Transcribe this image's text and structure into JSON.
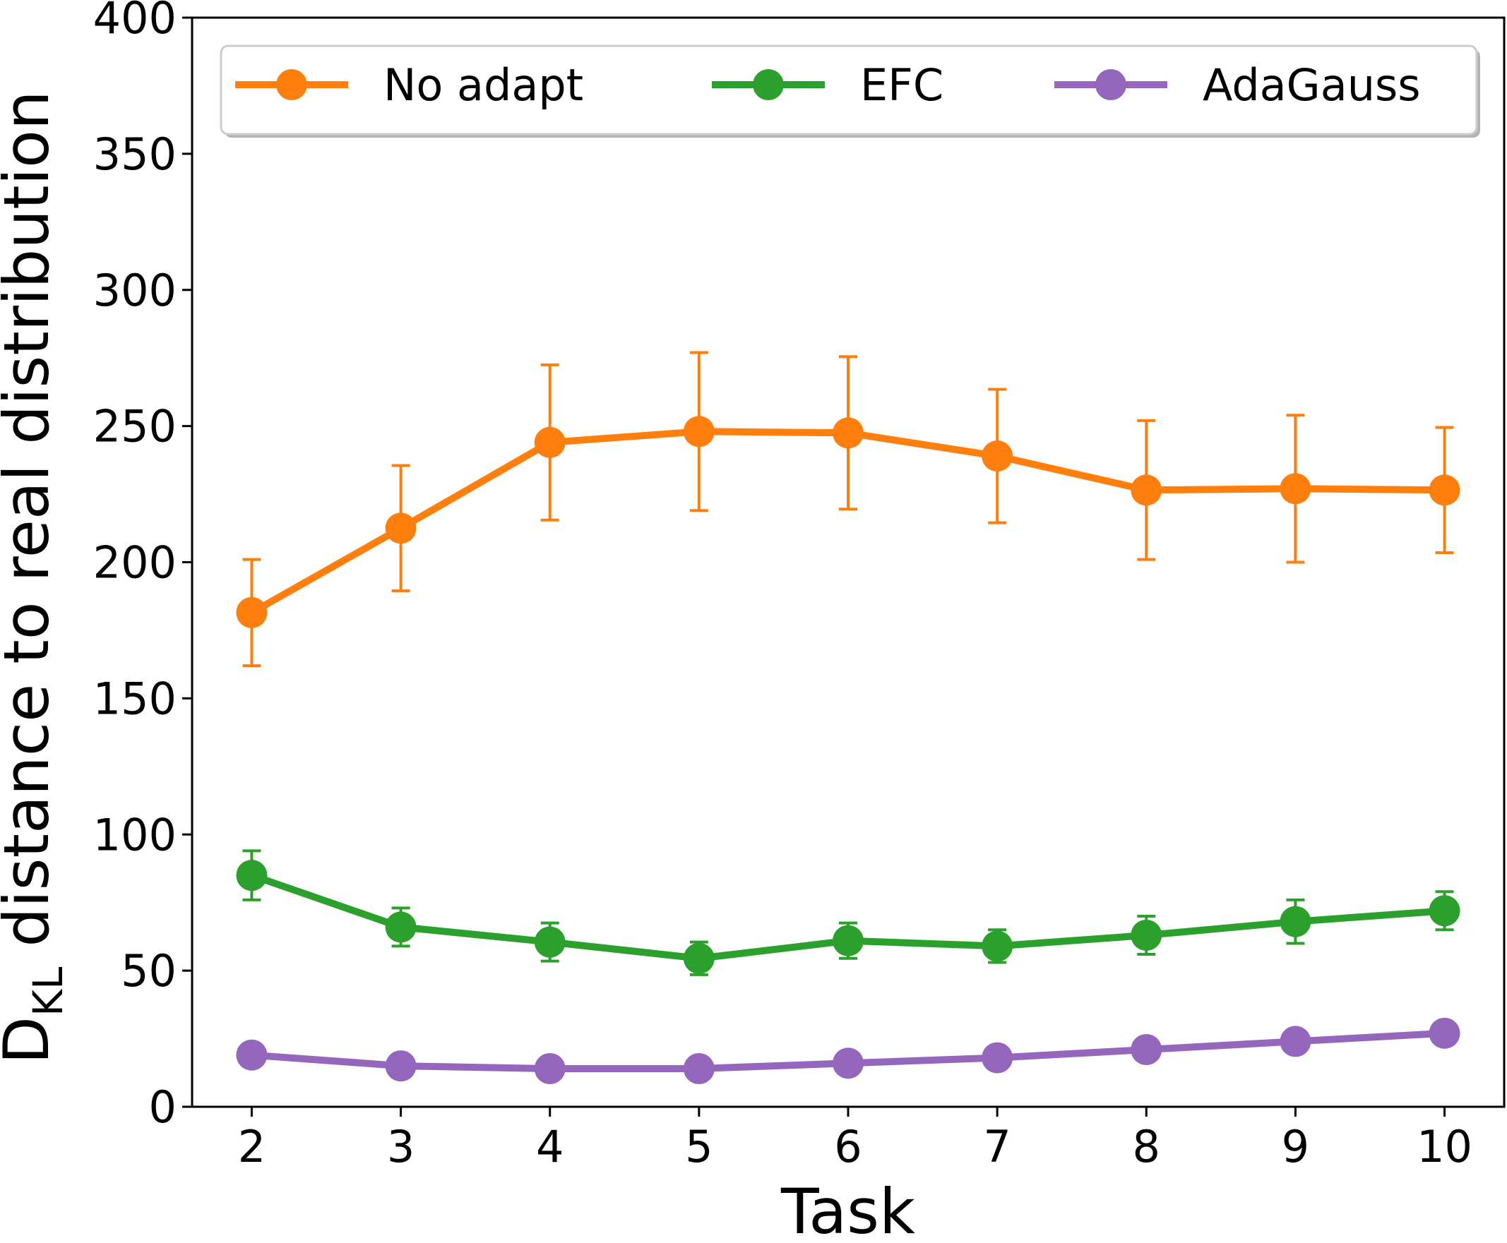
{
  "chart_data": {
    "type": "line",
    "title": "",
    "xlabel": "Task",
    "ylabel": {
      "main": "D",
      "sub": "KL",
      "rest": " distance to real distribution"
    },
    "x": [
      2,
      3,
      4,
      5,
      6,
      7,
      8,
      9,
      10
    ],
    "xticks": [
      "2",
      "3",
      "4",
      "5",
      "6",
      "7",
      "8",
      "9",
      "10"
    ],
    "xlim": [
      1.6,
      10.4
    ],
    "yticks": [
      "0",
      "50",
      "100",
      "150",
      "200",
      "250",
      "300",
      "350",
      "400"
    ],
    "ylim": [
      0,
      400
    ],
    "grid": false,
    "legend_position": "top",
    "series": [
      {
        "name": "No adapt",
        "color": "#ff7f0e",
        "values": [
          181.5,
          212.5,
          244,
          248,
          247.5,
          239,
          226.5,
          227,
          226.5
        ],
        "error": [
          19.5,
          23,
          28.5,
          29,
          28,
          24.5,
          25.5,
          27,
          23
        ]
      },
      {
        "name": "EFC",
        "color": "#2ca02c",
        "values": [
          85,
          66,
          60.5,
          54.5,
          61,
          59,
          63,
          68,
          72
        ],
        "error": [
          9,
          7,
          7,
          6,
          6.5,
          6,
          7,
          8,
          7
        ]
      },
      {
        "name": "AdaGauss",
        "color": "#9467bd",
        "values": [
          19,
          15,
          14,
          14,
          16,
          18,
          21,
          24,
          27
        ],
        "error": [
          0,
          0,
          0,
          0,
          0,
          0,
          0,
          0,
          0
        ]
      }
    ]
  }
}
